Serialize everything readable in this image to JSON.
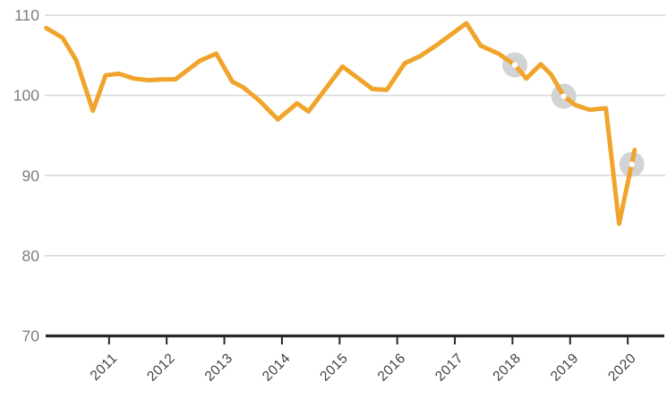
{
  "chart_data": {
    "type": "line",
    "title": "",
    "xlabel": "",
    "ylabel": "",
    "grid": "horizontal",
    "legend": "none",
    "xlim": [
      2009.9,
      2020.65
    ],
    "ylim": [
      70,
      110
    ],
    "x_ticks": [
      "2011",
      "2012",
      "2013",
      "2014",
      "2015",
      "2016",
      "2017",
      "2018",
      "2019",
      "2020"
    ],
    "x_tick_years": [
      2011,
      2012,
      2013,
      2014,
      2015,
      2016,
      2017,
      2018,
      2019,
      2020
    ],
    "y_ticks": [
      "70",
      "80",
      "90",
      "100",
      "110"
    ],
    "y_tick_values": [
      70,
      80,
      90,
      100,
      110
    ],
    "series": [
      {
        "name": "index-line",
        "color": "#F0A42C",
        "points": [
          [
            2009.91,
            108.4
          ],
          [
            2010.19,
            107.2
          ],
          [
            2010.43,
            104.4
          ],
          [
            2010.72,
            98.1
          ],
          [
            2010.94,
            102.5
          ],
          [
            2011.17,
            102.7
          ],
          [
            2011.43,
            102.1
          ],
          [
            2011.68,
            101.9
          ],
          [
            2011.93,
            102.0
          ],
          [
            2012.15,
            102.0
          ],
          [
            2012.57,
            104.3
          ],
          [
            2012.86,
            105.2
          ],
          [
            2013.14,
            101.7
          ],
          [
            2013.33,
            101.0
          ],
          [
            2013.6,
            99.4
          ],
          [
            2013.93,
            97.0
          ],
          [
            2014.26,
            99.0
          ],
          [
            2014.46,
            98.0
          ],
          [
            2015.05,
            103.6
          ],
          [
            2015.31,
            102.2
          ],
          [
            2015.57,
            100.8
          ],
          [
            2015.82,
            100.7
          ],
          [
            2016.13,
            104.0
          ],
          [
            2016.4,
            104.9
          ],
          [
            2016.71,
            106.4
          ],
          [
            2017.2,
            109.0
          ],
          [
            2017.45,
            106.2
          ],
          [
            2017.76,
            105.2
          ],
          [
            2018.04,
            103.8
          ],
          [
            2018.24,
            102.1
          ],
          [
            2018.49,
            103.9
          ],
          [
            2018.67,
            102.6
          ],
          [
            2018.89,
            99.9
          ],
          [
            2019.09,
            98.8
          ],
          [
            2019.34,
            98.2
          ],
          [
            2019.62,
            98.4
          ],
          [
            2019.85,
            84.0
          ],
          [
            2020.12,
            93.2
          ]
        ]
      }
    ],
    "highlight_markers": {
      "circle_color": "#D2D3D5",
      "dot_color": "#FFFFFF",
      "points": [
        [
          2018.04,
          103.8
        ],
        [
          2018.89,
          99.9
        ],
        [
          2020.07,
          91.4
        ]
      ]
    },
    "colors": {
      "line": "#F0A42C",
      "grid": "#D5D6D7",
      "axis": "#29262A",
      "y_tick_label": "#7D7E81",
      "x_tick_label": "#3F4041",
      "background": "#FFFFFF"
    }
  }
}
